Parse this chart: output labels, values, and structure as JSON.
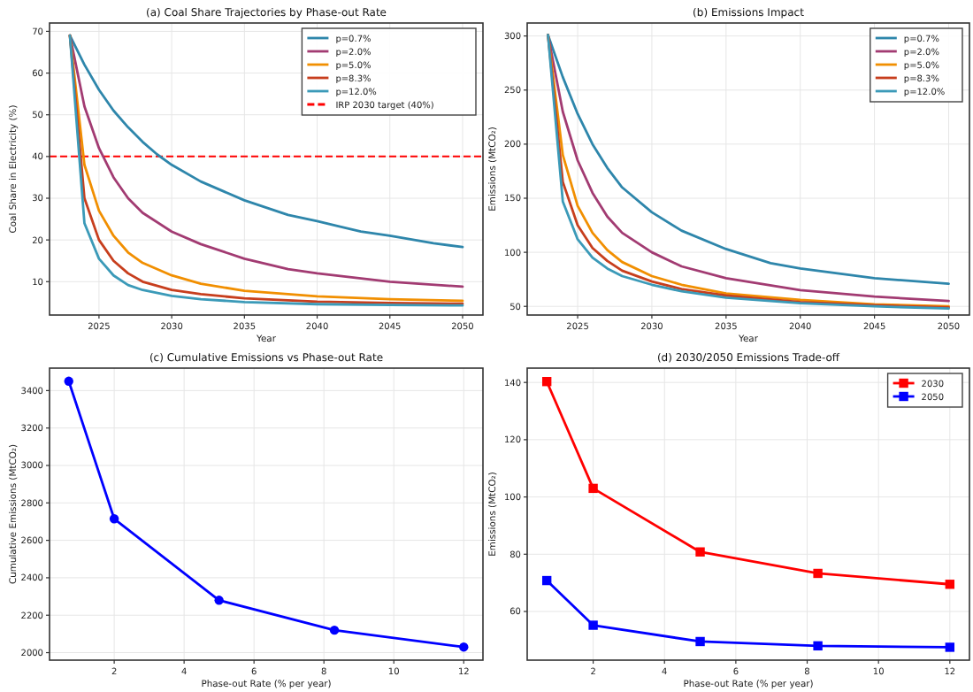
{
  "chart_data": [
    {
      "type": "line",
      "title": "(a) Coal Share Trajectories by Phase-out Rate",
      "xlabel": "Year",
      "ylabel": "Coal Share in Electricity (%)",
      "xlim": [
        2021.6,
        2051.4
      ],
      "ylim": [
        2,
        72
      ],
      "xticks": [
        2025,
        2030,
        2035,
        2040,
        2045,
        2050
      ],
      "yticks": [
        10,
        20,
        30,
        40,
        50,
        60,
        70
      ],
      "grid": true,
      "legend": "top right",
      "marker": "none",
      "line_style": "solid",
      "ref_lines": [
        {
          "axis": "y",
          "value": 40,
          "label": "IRP 2030 target (40%)",
          "color": "#ff0000",
          "line_style": "dashed"
        }
      ],
      "series": [
        {
          "name": "p=0.7%",
          "color": "#2e86ab",
          "x": [
            2023,
            2024,
            2025,
            2026,
            2027,
            2028,
            2029,
            2030,
            2032,
            2035,
            2038,
            2040,
            2043,
            2045,
            2048,
            2050
          ],
          "values": [
            69,
            62,
            56,
            51,
            47,
            43.5,
            40.5,
            38,
            34,
            29.5,
            26,
            24.5,
            22,
            21,
            19.2,
            18.3
          ]
        },
        {
          "name": "p=2.0%",
          "color": "#a23b72",
          "x": [
            2023,
            2024,
            2025,
            2026,
            2027,
            2028,
            2030,
            2032,
            2035,
            2038,
            2040,
            2045,
            2050
          ],
          "values": [
            69,
            52,
            42,
            35,
            30,
            26.5,
            22,
            19,
            15.5,
            13,
            12,
            10,
            8.8
          ]
        },
        {
          "name": "p=5.0%",
          "color": "#f18f01",
          "x": [
            2023,
            2024,
            2025,
            2026,
            2027,
            2028,
            2030,
            2032,
            2035,
            2040,
            2045,
            2050
          ],
          "values": [
            69,
            38,
            27,
            21,
            17,
            14.5,
            11.5,
            9.5,
            7.8,
            6.5,
            5.8,
            5.4
          ]
        },
        {
          "name": "p=8.3%",
          "color": "#c73e1d",
          "x": [
            2023,
            2024,
            2025,
            2026,
            2027,
            2028,
            2030,
            2032,
            2035,
            2040,
            2045,
            2050
          ],
          "values": [
            69,
            30,
            20,
            15,
            12,
            10,
            8,
            7,
            6,
            5.2,
            4.9,
            4.7
          ]
        },
        {
          "name": "p=12.0%",
          "color": "#3b9ab8",
          "x": [
            2023,
            2024,
            2025,
            2026,
            2027,
            2028,
            2030,
            2032,
            2035,
            2040,
            2045,
            2050
          ],
          "values": [
            69,
            24,
            15.5,
            11.5,
            9.2,
            8,
            6.6,
            5.8,
            5.1,
            4.6,
            4.4,
            4.3
          ]
        }
      ]
    },
    {
      "type": "line",
      "title": "(b) Emissions Impact",
      "xlabel": "Year",
      "ylabel": "Emissions (MtCO₂)",
      "xlim": [
        2021.6,
        2051.4
      ],
      "ylim": [
        42,
        312
      ],
      "xticks": [
        2025,
        2030,
        2035,
        2040,
        2045,
        2050
      ],
      "yticks": [
        50,
        100,
        150,
        200,
        250,
        300
      ],
      "grid": true,
      "legend": "top right",
      "marker": "none",
      "line_style": "solid",
      "series": [
        {
          "name": "p=0.7%",
          "color": "#2e86ab",
          "x": [
            2023,
            2024,
            2025,
            2026,
            2027,
            2028,
            2030,
            2032,
            2035,
            2038,
            2040,
            2045,
            2050
          ],
          "values": [
            301,
            262,
            228,
            200,
            178,
            160,
            137,
            120,
            103,
            90,
            85,
            76,
            71
          ]
        },
        {
          "name": "p=2.0%",
          "color": "#a23b72",
          "x": [
            2023,
            2024,
            2025,
            2026,
            2027,
            2028,
            2030,
            2032,
            2035,
            2040,
            2045,
            2050
          ],
          "values": [
            301,
            230,
            185,
            155,
            133,
            118,
            100,
            87,
            76,
            65,
            59,
            55
          ]
        },
        {
          "name": "p=5.0%",
          "color": "#f18f01",
          "x": [
            2023,
            2024,
            2025,
            2026,
            2027,
            2028,
            2030,
            2032,
            2035,
            2040,
            2045,
            2050
          ],
          "values": [
            301,
            190,
            143,
            118,
            102,
            91,
            78,
            70,
            62,
            56,
            52,
            50
          ]
        },
        {
          "name": "p=8.3%",
          "color": "#c73e1d",
          "x": [
            2023,
            2024,
            2025,
            2026,
            2027,
            2028,
            2030,
            2032,
            2035,
            2040,
            2045,
            2050
          ],
          "values": [
            301,
            165,
            125,
            104,
            92,
            83,
            73,
            66,
            60,
            54,
            51,
            49
          ]
        },
        {
          "name": "p=12.0%",
          "color": "#3b9ab8",
          "x": [
            2023,
            2024,
            2025,
            2026,
            2027,
            2028,
            2030,
            2032,
            2035,
            2040,
            2045,
            2050
          ],
          "values": [
            301,
            147,
            112,
            95,
            85,
            78,
            70,
            64,
            58,
            53,
            50,
            48
          ]
        }
      ]
    },
    {
      "type": "line",
      "title": "(c) Cumulative Emissions vs Phase-out Rate",
      "xlabel": "Phase-out Rate (% per year)",
      "ylabel": "Cumulative Emissions (MtCO₂)",
      "xlim": [
        0.15,
        12.55
      ],
      "ylim": [
        1960,
        3520
      ],
      "xticks": [
        2,
        4,
        6,
        8,
        10,
        12
      ],
      "yticks": [
        2000,
        2200,
        2400,
        2600,
        2800,
        3000,
        3200,
        3400
      ],
      "grid": true,
      "marker": "circle",
      "line_style": "solid",
      "series": [
        {
          "color": "#0000ff",
          "x": [
            0.7,
            2,
            5,
            8.3,
            12
          ],
          "values": [
            3450,
            2715,
            2280,
            2120,
            2030
          ]
        }
      ]
    },
    {
      "type": "line",
      "title": "(d) 2030/2050 Emissions Trade-off",
      "xlabel": "Phase-out Rate (% per year)",
      "ylabel": "Emissions (MtCO₂)",
      "xlim": [
        0.15,
        12.55
      ],
      "ylim": [
        43,
        145
      ],
      "xticks": [
        2,
        4,
        6,
        8,
        10,
        12
      ],
      "yticks": [
        60,
        80,
        100,
        120,
        140
      ],
      "grid": true,
      "legend": "top right",
      "marker": "square",
      "line_style": "solid",
      "series": [
        {
          "name": "2030",
          "color": "#ff0000",
          "x": [
            0.7,
            2,
            5,
            8.3,
            12
          ],
          "values": [
            140.3,
            103,
            80.8,
            73.3,
            69.5
          ]
        },
        {
          "name": "2050",
          "color": "#0000ff",
          "x": [
            0.7,
            2,
            5,
            8.3,
            12
          ],
          "values": [
            70.8,
            55.2,
            49.5,
            48,
            47.5
          ]
        }
      ]
    }
  ]
}
